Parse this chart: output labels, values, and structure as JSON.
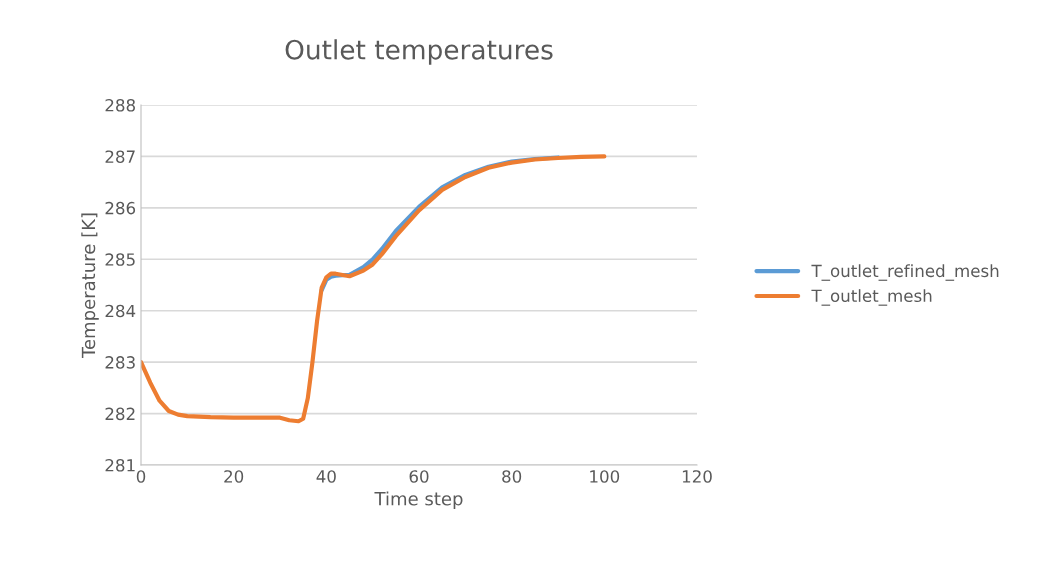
{
  "chart_data": {
    "type": "line",
    "title": "Outlet temperatures",
    "xlabel": "Time step",
    "ylabel": "Temperature [K]",
    "xlim": [
      0,
      120
    ],
    "xticks": [
      0,
      20,
      40,
      60,
      80,
      100,
      120
    ],
    "ylim": [
      281,
      288
    ],
    "yticks": [
      281,
      282,
      283,
      284,
      285,
      286,
      287,
      288
    ],
    "grid": "y",
    "legend": "right",
    "marker": "none",
    "line_style": "solid",
    "series": [
      {
        "name": "T_outlet_refined_mesh",
        "color": "#5b9bd5",
        "x": [
          39,
          40,
          41,
          42,
          45,
          48,
          50,
          52,
          55,
          60,
          65,
          70,
          75,
          80,
          85,
          90
        ],
        "values": [
          284.4,
          284.6,
          284.66,
          284.68,
          284.7,
          284.85,
          285.0,
          285.2,
          285.55,
          286.02,
          286.4,
          286.64,
          286.8,
          286.9,
          286.95,
          286.98
        ]
      },
      {
        "name": "T_outlet_mesh",
        "color": "#ed7d31",
        "x": [
          0,
          2,
          4,
          6,
          8,
          10,
          15,
          20,
          30,
          32,
          34,
          35,
          36,
          37,
          38,
          39,
          40,
          41,
          42,
          45,
          48,
          50,
          52,
          55,
          60,
          65,
          70,
          75,
          80,
          85,
          90,
          95,
          100
        ],
        "values": [
          283.0,
          282.6,
          282.25,
          282.05,
          281.98,
          281.95,
          281.93,
          281.92,
          281.92,
          281.87,
          281.85,
          281.9,
          282.3,
          283.0,
          283.8,
          284.45,
          284.65,
          284.72,
          284.72,
          284.67,
          284.78,
          284.9,
          285.1,
          285.45,
          285.95,
          286.35,
          286.6,
          286.78,
          286.88,
          286.94,
          286.97,
          286.99,
          287.0
        ]
      }
    ]
  }
}
